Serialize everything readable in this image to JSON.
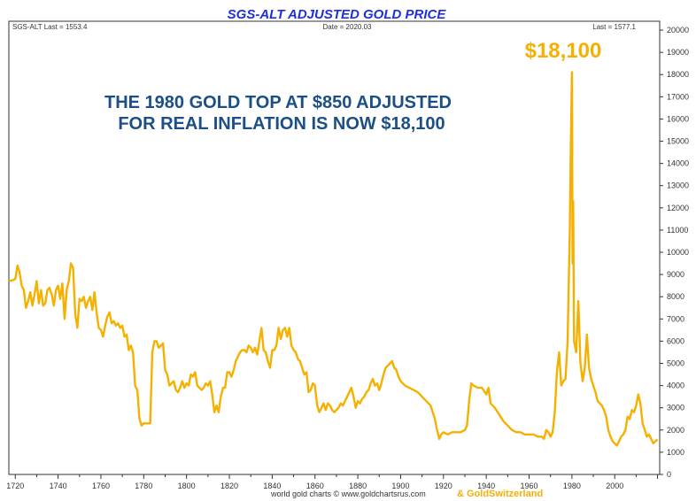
{
  "chart_data": {
    "type": "line",
    "title": "SGS-ALT ADJUSTED  GOLD PRICE",
    "header": {
      "left": "SGS-ALT Last = 1553.4",
      "center": "Date = 2020.03",
      "right": "Last = 1577.1"
    },
    "annotation_lines": [
      "THE 1980 GOLD TOP AT $850 ADJUSTED",
      "FOR REAL INFLATION IS NOW $18,100"
    ],
    "peak_label": "$18,100",
    "footer": {
      "source": "world gold charts © www.goldchartsrus.com",
      "partner": "& GoldSwitzerland"
    },
    "x_ticks": [
      1720,
      1740,
      1760,
      1780,
      1800,
      1820,
      1840,
      1860,
      1880,
      1900,
      1920,
      1940,
      1960,
      1980,
      2000
    ],
    "y_ticks": [
      0,
      1000,
      2000,
      3000,
      4000,
      5000,
      6000,
      7000,
      8000,
      9000,
      10000,
      11000,
      12000,
      13000,
      14000,
      15000,
      16000,
      17000,
      18000,
      19000,
      20000
    ],
    "xlim": [
      1717,
      2021
    ],
    "ylim": [
      0,
      20400
    ],
    "y_axis_side": "right",
    "grid": false,
    "colors": {
      "line": "#f5b000",
      "title": "#1f2fe0",
      "annotation": "#1c4f86"
    },
    "series": [
      {
        "values": [
          [
            1717,
            8700
          ],
          [
            1719,
            8750
          ],
          [
            1720,
            8800
          ],
          [
            1721,
            9400
          ],
          [
            1722,
            9100
          ],
          [
            1723,
            8500
          ],
          [
            1724,
            8300
          ],
          [
            1725,
            7500
          ],
          [
            1726,
            7800
          ],
          [
            1727,
            8200
          ],
          [
            1728,
            7600
          ],
          [
            1729,
            8100
          ],
          [
            1730,
            8700
          ],
          [
            1731,
            7700
          ],
          [
            1732,
            8300
          ],
          [
            1733,
            7600
          ],
          [
            1734,
            7700
          ],
          [
            1735,
            8300
          ],
          [
            1736,
            8400
          ],
          [
            1737,
            8100
          ],
          [
            1738,
            7600
          ],
          [
            1739,
            8300
          ],
          [
            1740,
            8500
          ],
          [
            1741,
            7900
          ],
          [
            1742,
            8600
          ],
          [
            1743,
            7000
          ],
          [
            1744,
            8300
          ],
          [
            1745,
            8700
          ],
          [
            1746,
            9500
          ],
          [
            1747,
            9300
          ],
          [
            1748,
            7200
          ],
          [
            1749,
            6600
          ],
          [
            1750,
            7900
          ],
          [
            1751,
            7800
          ],
          [
            1752,
            8000
          ],
          [
            1753,
            7500
          ],
          [
            1754,
            7800
          ],
          [
            1755,
            8000
          ],
          [
            1756,
            7400
          ],
          [
            1757,
            8200
          ],
          [
            1758,
            7300
          ],
          [
            1759,
            6600
          ],
          [
            1760,
            6500
          ],
          [
            1761,
            6200
          ],
          [
            1762,
            6700
          ],
          [
            1763,
            7100
          ],
          [
            1764,
            7300
          ],
          [
            1765,
            6800
          ],
          [
            1766,
            6900
          ],
          [
            1767,
            6700
          ],
          [
            1768,
            6800
          ],
          [
            1769,
            6600
          ],
          [
            1770,
            6700
          ],
          [
            1771,
            6200
          ],
          [
            1772,
            6300
          ],
          [
            1773,
            5600
          ],
          [
            1774,
            5800
          ],
          [
            1775,
            5500
          ],
          [
            1776,
            4000
          ],
          [
            1777,
            3800
          ],
          [
            1778,
            2500
          ],
          [
            1779,
            2200
          ],
          [
            1780,
            2300
          ],
          [
            1782,
            2300
          ],
          [
            1783,
            2300
          ],
          [
            1784,
            5500
          ],
          [
            1785,
            6000
          ],
          [
            1786,
            6000
          ],
          [
            1787,
            5700
          ],
          [
            1788,
            5800
          ],
          [
            1789,
            5900
          ],
          [
            1790,
            4700
          ],
          [
            1791,
            4500
          ],
          [
            1792,
            4000
          ],
          [
            1793,
            4100
          ],
          [
            1794,
            4200
          ],
          [
            1795,
            3800
          ],
          [
            1796,
            3700
          ],
          [
            1797,
            3900
          ],
          [
            1798,
            4200
          ],
          [
            1799,
            3900
          ],
          [
            1800,
            4100
          ],
          [
            1801,
            4000
          ],
          [
            1802,
            4500
          ],
          [
            1803,
            4400
          ],
          [
            1804,
            4600
          ],
          [
            1805,
            4000
          ],
          [
            1806,
            3900
          ],
          [
            1807,
            3800
          ],
          [
            1808,
            3900
          ],
          [
            1809,
            4100
          ],
          [
            1810,
            4000
          ],
          [
            1811,
            4200
          ],
          [
            1812,
            3600
          ],
          [
            1813,
            2800
          ],
          [
            1814,
            3100
          ],
          [
            1815,
            2800
          ],
          [
            1816,
            3500
          ],
          [
            1817,
            3900
          ],
          [
            1818,
            3900
          ],
          [
            1819,
            4600
          ],
          [
            1820,
            4600
          ],
          [
            1821,
            4400
          ],
          [
            1822,
            4700
          ],
          [
            1823,
            5100
          ],
          [
            1824,
            5300
          ],
          [
            1825,
            5500
          ],
          [
            1826,
            5600
          ],
          [
            1827,
            5600
          ],
          [
            1828,
            5500
          ],
          [
            1829,
            5800
          ],
          [
            1830,
            5700
          ],
          [
            1831,
            5500
          ],
          [
            1832,
            5700
          ],
          [
            1833,
            5400
          ],
          [
            1834,
            6000
          ],
          [
            1835,
            6600
          ],
          [
            1836,
            5600
          ],
          [
            1837,
            5500
          ],
          [
            1838,
            5100
          ],
          [
            1839,
            4800
          ],
          [
            1840,
            5600
          ],
          [
            1841,
            5600
          ],
          [
            1842,
            5800
          ],
          [
            1843,
            6600
          ],
          [
            1844,
            6100
          ],
          [
            1845,
            6500
          ],
          [
            1846,
            6600
          ],
          [
            1847,
            6200
          ],
          [
            1848,
            6600
          ],
          [
            1849,
            5800
          ],
          [
            1850,
            5600
          ],
          [
            1851,
            5500
          ],
          [
            1852,
            5200
          ],
          [
            1853,
            5100
          ],
          [
            1854,
            4800
          ],
          [
            1855,
            4500
          ],
          [
            1856,
            4600
          ],
          [
            1857,
            3700
          ],
          [
            1858,
            3800
          ],
          [
            1859,
            4100
          ],
          [
            1860,
            4000
          ],
          [
            1861,
            3100
          ],
          [
            1862,
            2800
          ],
          [
            1863,
            3000
          ],
          [
            1864,
            3200
          ],
          [
            1865,
            2900
          ],
          [
            1866,
            3200
          ],
          [
            1867,
            3100
          ],
          [
            1868,
            2900
          ],
          [
            1869,
            2800
          ],
          [
            1870,
            2900
          ],
          [
            1871,
            3000
          ],
          [
            1872,
            3200
          ],
          [
            1873,
            3100
          ],
          [
            1874,
            3300
          ],
          [
            1875,
            3500
          ],
          [
            1876,
            3700
          ],
          [
            1877,
            3900
          ],
          [
            1878,
            3500
          ],
          [
            1879,
            3000
          ],
          [
            1880,
            3300
          ],
          [
            1881,
            3200
          ],
          [
            1882,
            3400
          ],
          [
            1883,
            3500
          ],
          [
            1884,
            3700
          ],
          [
            1885,
            3800
          ],
          [
            1886,
            4100
          ],
          [
            1887,
            4300
          ],
          [
            1888,
            4000
          ],
          [
            1889,
            4100
          ],
          [
            1890,
            3800
          ],
          [
            1891,
            4100
          ],
          [
            1892,
            4500
          ],
          [
            1893,
            4800
          ],
          [
            1894,
            4900
          ],
          [
            1895,
            5000
          ],
          [
            1896,
            5100
          ],
          [
            1897,
            4800
          ],
          [
            1898,
            4700
          ],
          [
            1899,
            4400
          ],
          [
            1900,
            4200
          ],
          [
            1902,
            4000
          ],
          [
            1904,
            3900
          ],
          [
            1906,
            3800
          ],
          [
            1908,
            3700
          ],
          [
            1910,
            3500
          ],
          [
            1912,
            3300
          ],
          [
            1914,
            3100
          ],
          [
            1916,
            2500
          ],
          [
            1917,
            2000
          ],
          [
            1918,
            1600
          ],
          [
            1919,
            1800
          ],
          [
            1920,
            1900
          ],
          [
            1922,
            1800
          ],
          [
            1924,
            1900
          ],
          [
            1926,
            1900
          ],
          [
            1928,
            1900
          ],
          [
            1930,
            2000
          ],
          [
            1931,
            2200
          ],
          [
            1932,
            3300
          ],
          [
            1933,
            4100
          ],
          [
            1934,
            4000
          ],
          [
            1936,
            3900
          ],
          [
            1938,
            3900
          ],
          [
            1940,
            3600
          ],
          [
            1941,
            3900
          ],
          [
            1942,
            3200
          ],
          [
            1944,
            3000
          ],
          [
            1946,
            2700
          ],
          [
            1948,
            2400
          ],
          [
            1950,
            2200
          ],
          [
            1952,
            2000
          ],
          [
            1954,
            1900
          ],
          [
            1956,
            1900
          ],
          [
            1958,
            1800
          ],
          [
            1960,
            1800
          ],
          [
            1962,
            1800
          ],
          [
            1964,
            1700
          ],
          [
            1966,
            1700
          ],
          [
            1967,
            1600
          ],
          [
            1968,
            2000
          ],
          [
            1969,
            1900
          ],
          [
            1970,
            1700
          ],
          [
            1971,
            1900
          ],
          [
            1972,
            2800
          ],
          [
            1973,
            4600
          ],
          [
            1974,
            5500
          ],
          [
            1975,
            4000
          ],
          [
            1976,
            4200
          ],
          [
            1977,
            4300
          ],
          [
            1978,
            6000
          ],
          [
            1979,
            11000
          ],
          [
            1979.5,
            15000
          ],
          [
            1980,
            18100
          ],
          [
            1980.3,
            9500
          ],
          [
            1980.6,
            12300
          ],
          [
            1981,
            6000
          ],
          [
            1982,
            5500
          ],
          [
            1983,
            7800
          ],
          [
            1984,
            5000
          ],
          [
            1985,
            4200
          ],
          [
            1986,
            4800
          ],
          [
            1987,
            6300
          ],
          [
            1988,
            4800
          ],
          [
            1989,
            4300
          ],
          [
            1990,
            4000
          ],
          [
            1991,
            3700
          ],
          [
            1992,
            3300
          ],
          [
            1993,
            3200
          ],
          [
            1994,
            3100
          ],
          [
            1995,
            2900
          ],
          [
            1996,
            2600
          ],
          [
            1997,
            2000
          ],
          [
            1998,
            1700
          ],
          [
            1999,
            1500
          ],
          [
            2000,
            1400
          ],
          [
            2001,
            1300
          ],
          [
            2002,
            1500
          ],
          [
            2003,
            1700
          ],
          [
            2004,
            1800
          ],
          [
            2005,
            2000
          ],
          [
            2006,
            2600
          ],
          [
            2007,
            2500
          ],
          [
            2008,
            2900
          ],
          [
            2009,
            2800
          ],
          [
            2010,
            3100
          ],
          [
            2011,
            3600
          ],
          [
            2012,
            3200
          ],
          [
            2013,
            2300
          ],
          [
            2014,
            2000
          ],
          [
            2015,
            1700
          ],
          [
            2016,
            1800
          ],
          [
            2017,
            1600
          ],
          [
            2018,
            1400
          ],
          [
            2019,
            1500
          ],
          [
            2020,
            1577
          ]
        ]
      }
    ]
  }
}
